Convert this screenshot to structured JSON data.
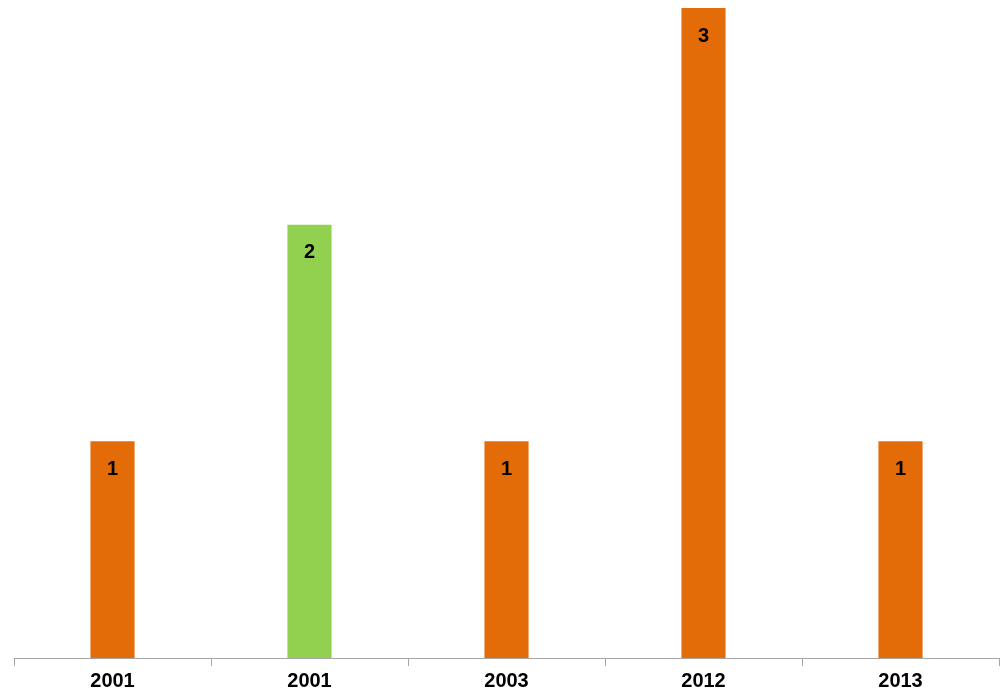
{
  "chart_data": {
    "type": "bar",
    "categories": [
      "2001",
      "2001",
      "2003",
      "2012",
      "2013"
    ],
    "values": [
      1,
      2,
      1,
      3,
      1
    ],
    "colors": [
      "#e36c09",
      "#92d050",
      "#e36c09",
      "#e36c09",
      "#e36c09"
    ],
    "ylim": [
      0,
      3
    ],
    "grid": false,
    "data_labels": true,
    "tick_labels": "x"
  }
}
